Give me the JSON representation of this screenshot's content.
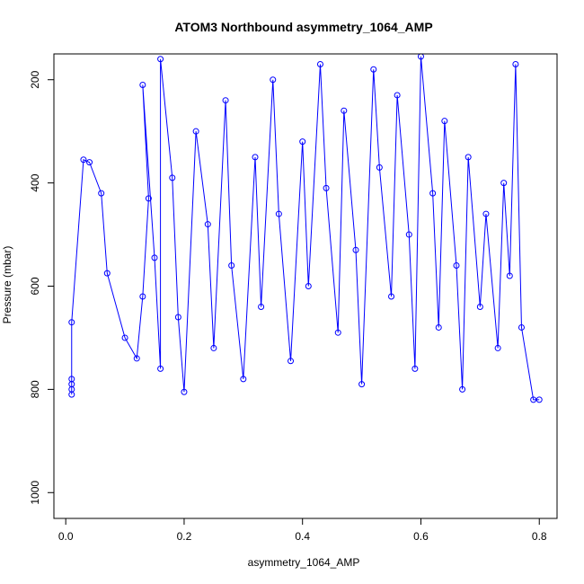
{
  "chart_data": {
    "type": "scatter",
    "title": "ATOM3 Northbound asymmetry_1064_AMP",
    "xlabel": "asymmetry_1064_AMP",
    "ylabel": "Pressure (mbar)",
    "xlim": [
      -0.02,
      0.83
    ],
    "ylim": [
      1050,
      150
    ],
    "y_reversed": true,
    "x_ticks": [
      0.0,
      0.2,
      0.4,
      0.6,
      0.8
    ],
    "x_tick_labels": [
      "0.0",
      "0.2",
      "0.4",
      "0.6",
      "0.8"
    ],
    "y_ticks": [
      200,
      400,
      600,
      800,
      1000
    ],
    "y_tick_labels": [
      "200",
      "400",
      "600",
      "800",
      "1000"
    ],
    "grid": false,
    "legend": "none",
    "marker": "open-circle",
    "connected_by_lines": true,
    "series_color": "#0000ff",
    "series": [
      {
        "points": [
          {
            "x": 0.01,
            "y": 810
          },
          {
            "x": 0.01,
            "y": 800
          },
          {
            "x": 0.01,
            "y": 790
          },
          {
            "x": 0.01,
            "y": 780
          },
          {
            "x": 0.01,
            "y": 670
          },
          {
            "x": 0.03,
            "y": 355
          },
          {
            "x": 0.04,
            "y": 360
          },
          {
            "x": 0.06,
            "y": 420
          },
          {
            "x": 0.07,
            "y": 575
          },
          {
            "x": 0.1,
            "y": 700
          },
          {
            "x": 0.12,
            "y": 740
          },
          {
            "x": 0.13,
            "y": 620
          },
          {
            "x": 0.14,
            "y": 430
          },
          {
            "x": 0.13,
            "y": 210
          },
          {
            "x": 0.15,
            "y": 545
          },
          {
            "x": 0.16,
            "y": 760
          },
          {
            "x": 0.16,
            "y": 160
          },
          {
            "x": 0.18,
            "y": 390
          },
          {
            "x": 0.19,
            "y": 660
          },
          {
            "x": 0.2,
            "y": 805
          },
          {
            "x": 0.22,
            "y": 300
          },
          {
            "x": 0.24,
            "y": 480
          },
          {
            "x": 0.25,
            "y": 720
          },
          {
            "x": 0.27,
            "y": 240
          },
          {
            "x": 0.28,
            "y": 560
          },
          {
            "x": 0.3,
            "y": 780
          },
          {
            "x": 0.32,
            "y": 350
          },
          {
            "x": 0.33,
            "y": 640
          },
          {
            "x": 0.35,
            "y": 200
          },
          {
            "x": 0.36,
            "y": 460
          },
          {
            "x": 0.38,
            "y": 745
          },
          {
            "x": 0.4,
            "y": 320
          },
          {
            "x": 0.41,
            "y": 600
          },
          {
            "x": 0.43,
            "y": 170
          },
          {
            "x": 0.44,
            "y": 410
          },
          {
            "x": 0.46,
            "y": 690
          },
          {
            "x": 0.47,
            "y": 260
          },
          {
            "x": 0.49,
            "y": 530
          },
          {
            "x": 0.5,
            "y": 790
          },
          {
            "x": 0.52,
            "y": 180
          },
          {
            "x": 0.53,
            "y": 370
          },
          {
            "x": 0.55,
            "y": 620
          },
          {
            "x": 0.56,
            "y": 230
          },
          {
            "x": 0.58,
            "y": 500
          },
          {
            "x": 0.59,
            "y": 760
          },
          {
            "x": 0.6,
            "y": 155
          },
          {
            "x": 0.62,
            "y": 420
          },
          {
            "x": 0.63,
            "y": 680
          },
          {
            "x": 0.64,
            "y": 280
          },
          {
            "x": 0.66,
            "y": 560
          },
          {
            "x": 0.67,
            "y": 800
          },
          {
            "x": 0.68,
            "y": 350
          },
          {
            "x": 0.7,
            "y": 640
          },
          {
            "x": 0.71,
            "y": 460
          },
          {
            "x": 0.73,
            "y": 720
          },
          {
            "x": 0.74,
            "y": 400
          },
          {
            "x": 0.75,
            "y": 580
          },
          {
            "x": 0.76,
            "y": 170
          },
          {
            "x": 0.77,
            "y": 680
          },
          {
            "x": 0.79,
            "y": 820
          },
          {
            "x": 0.8,
            "y": 820
          }
        ]
      }
    ]
  }
}
